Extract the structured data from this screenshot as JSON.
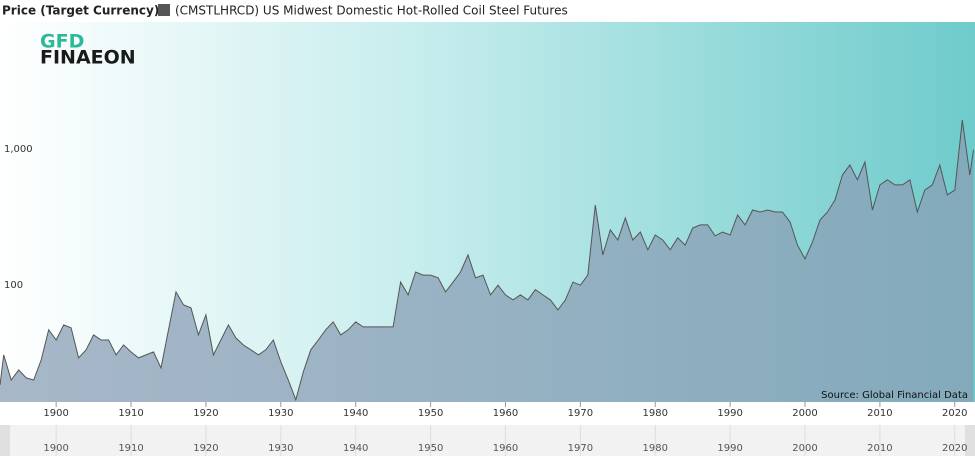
{
  "chart_data": {
    "type": "area",
    "title": "Price (Target Currency)",
    "logo": [
      "GFD",
      "FINAEON"
    ],
    "source": "Source: Global Financial Data",
    "log_scale": true,
    "grid": true,
    "x": [
      1892.5,
      1893,
      1894,
      1895,
      1896,
      1897,
      1898,
      1899,
      1900,
      1901,
      1902,
      1903,
      1904,
      1905,
      1906,
      1907,
      1908,
      1909,
      1910,
      1911,
      1912,
      1913,
      1914,
      1915,
      1916,
      1917,
      1918,
      1919,
      1920,
      1921,
      1922,
      1923,
      1924,
      1925,
      1926,
      1927,
      1928,
      1929,
      1930,
      1931,
      1932,
      1933,
      1934,
      1935,
      1936,
      1937,
      1938,
      1939,
      1940,
      1941,
      1942,
      1943,
      1944,
      1945,
      1946,
      1947,
      1948,
      1949,
      1950,
      1951,
      1952,
      1953,
      1954,
      1955,
      1956,
      1957,
      1958,
      1959,
      1960,
      1961,
      1962,
      1963,
      1964,
      1965,
      1966,
      1967,
      1968,
      1969,
      1970,
      1971,
      1972,
      1973,
      1974,
      1975,
      1976,
      1977,
      1978,
      1979,
      1980,
      1981,
      1982,
      1983,
      1984,
      1985,
      1986,
      1987,
      1988,
      1989,
      1990,
      1991,
      1992,
      1993,
      1994,
      1995,
      1996,
      1997,
      1998,
      1999,
      2000,
      2001,
      2002,
      2003,
      2004,
      2005,
      2006,
      2007,
      2008,
      2009,
      2010,
      2011,
      2012,
      2013,
      2014,
      2015,
      2016,
      2017,
      2018,
      2019,
      2020,
      2021,
      2022,
      2022.5
    ],
    "series": [
      {
        "name": "(CMSTLHRCD) US Midwest Domestic Hot-Rolled Coil Steel Futures",
        "color": "#555555",
        "fill": "#8a9fb6",
        "values": [
          20.7,
          34.4,
          22.5,
          26.7,
          23.3,
          22.5,
          31.6,
          52.6,
          44.3,
          57.2,
          54.4,
          32.7,
          37.5,
          48.3,
          44.3,
          44.3,
          34.4,
          40.7,
          36.2,
          32.7,
          34.4,
          36.2,
          27.6,
          52.6,
          100,
          80.3,
          76.3,
          48.3,
          67.7,
          34.4,
          44.3,
          57.2,
          45.9,
          40.7,
          37.5,
          34.4,
          37.5,
          44.3,
          30.6,
          22.5,
          16.1,
          25.8,
          37.5,
          44.3,
          52.6,
          60.2,
          48.3,
          52.6,
          60.2,
          55.3,
          55.3,
          55.3,
          55.3,
          55.3,
          118,
          95,
          140,
          133,
          133,
          127,
          100,
          118,
          140,
          187,
          127,
          133,
          95,
          112,
          95,
          87.3,
          95,
          87.3,
          104,
          95,
          87.3,
          73.7,
          87.3,
          118,
          112,
          133,
          436,
          187,
          286,
          241,
          350,
          241,
          276,
          204,
          262,
          241,
          204,
          250,
          221,
          295,
          311,
          311,
          258,
          276,
          262,
          368,
          311,
          400,
          387,
          400,
          387,
          387,
          327,
          221,
          175,
          233,
          338,
          387,
          475,
          725,
          858,
          668,
          902,
          400,
          612,
          668,
          612,
          612,
          668,
          387,
          561,
          612,
          858,
          517,
          561,
          1838,
          725,
          1110
        ]
      }
    ],
    "xlim": [
      1892.5,
      2022.7
    ],
    "xticks": [
      1900,
      1910,
      1920,
      1930,
      1940,
      1950,
      1960,
      1970,
      1980,
      1990,
      2000,
      2010,
      2020
    ],
    "ylim": [
      15.5,
      9660
    ],
    "yticks": [
      100,
      {
        "value": 1000,
        "label": "1,000"
      }
    ]
  }
}
